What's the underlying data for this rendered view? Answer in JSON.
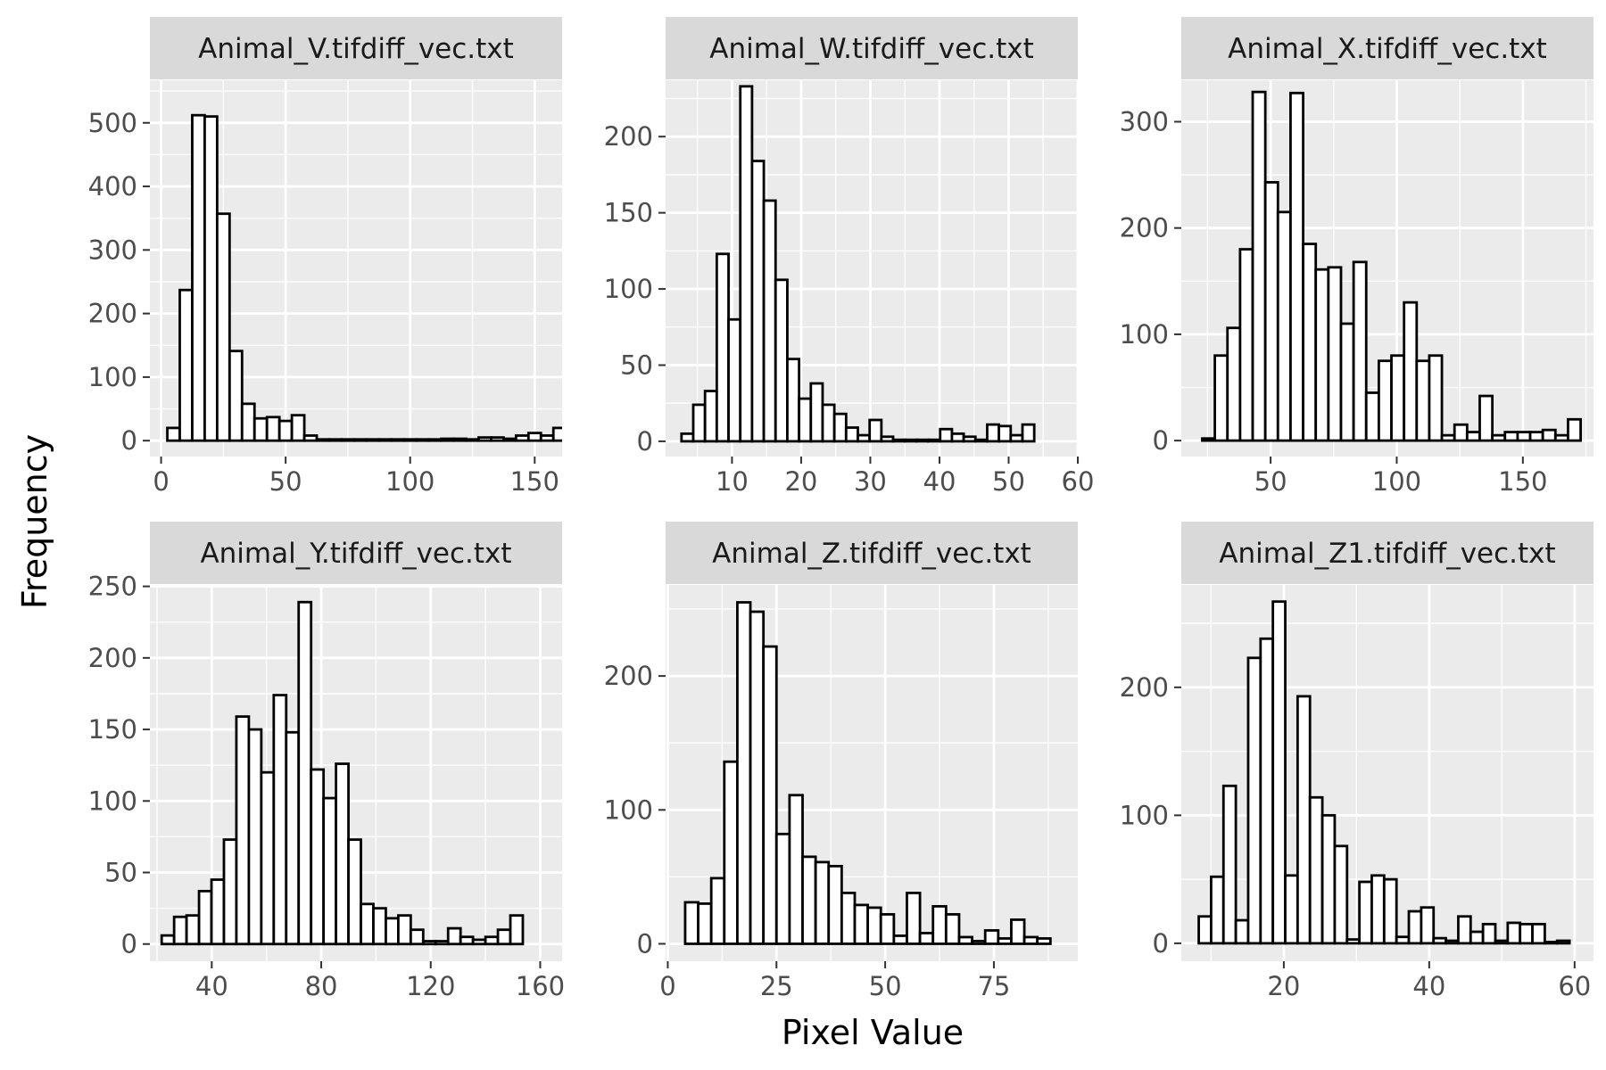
{
  "figure": {
    "xlabel": "Pixel Value",
    "ylabel": "Frequency",
    "colors": {
      "panel_background": "#ebebeb",
      "strip_background": "#d9d9d9",
      "grid": "#ffffff",
      "bar_fill": "#ffffff",
      "bar_stroke": "#000000",
      "tick": "#333333"
    }
  },
  "chart_data": [
    {
      "type": "bar",
      "title": "Animal_V.tifdiff_vec.txt",
      "xlabel": "Pixel Value",
      "ylabel": "Frequency",
      "xlim": [
        -4.5,
        161
      ],
      "ylim": [
        -25,
        567
      ],
      "xticks": [
        0,
        50,
        100,
        150
      ],
      "yticks": [
        0,
        100,
        200,
        300,
        400,
        500
      ],
      "grid": true,
      "bin_start": 2.5,
      "bin_width": 5,
      "values": [
        20,
        237,
        512,
        510,
        357,
        141,
        58,
        35,
        37,
        31,
        40,
        8,
        2,
        2,
        2,
        2,
        2,
        2,
        2,
        2,
        2,
        2,
        3,
        3,
        2,
        5,
        5,
        3,
        8,
        12,
        8,
        20
      ]
    },
    {
      "type": "bar",
      "title": "Animal_W.tifdiff_vec.txt",
      "xlabel": "Pixel Value",
      "ylabel": "Frequency",
      "xlim": [
        0.4,
        60
      ],
      "ylim": [
        -10,
        237
      ],
      "xticks": [
        10,
        20,
        30,
        40,
        50,
        60
      ],
      "yticks": [
        0,
        50,
        100,
        150,
        200
      ],
      "grid": true,
      "bin_start": 2.7,
      "bin_width": 1.7,
      "values": [
        5,
        24,
        33,
        123,
        80,
        233,
        184,
        158,
        106,
        54,
        28,
        38,
        24,
        18,
        9,
        4,
        14,
        3,
        1,
        1,
        1,
        1,
        8,
        5,
        3,
        1,
        11,
        10,
        4,
        11
      ]
    },
    {
      "type": "bar",
      "title": "Animal_X.tifdiff_vec.txt",
      "xlabel": "Pixel Value",
      "ylabel": "Frequency",
      "xlim": [
        14.6,
        178
      ],
      "ylim": [
        -15,
        339
      ],
      "xticks": [
        50,
        100,
        150
      ],
      "yticks": [
        0,
        100,
        200,
        300
      ],
      "grid": true,
      "bin_start": 22.9,
      "bin_width": 5,
      "values": [
        2,
        80,
        106,
        180,
        328,
        243,
        215,
        327,
        185,
        161,
        163,
        110,
        168,
        45,
        75,
        80,
        130,
        75,
        80,
        5,
        15,
        8,
        42,
        5,
        8,
        8,
        8,
        10,
        5,
        20
      ]
    },
    {
      "type": "bar",
      "title": "Animal_Y.tifdiff_vec.txt",
      "xlabel": "Pixel Value",
      "ylabel": "Frequency",
      "xlim": [
        17.4,
        168
      ],
      "ylim": [
        -12,
        251
      ],
      "xticks": [
        40,
        80,
        120,
        160
      ],
      "yticks": [
        0,
        50,
        100,
        150,
        200,
        250
      ],
      "grid": true,
      "bin_start": 21.7,
      "bin_width": 4.55,
      "values": [
        6,
        19,
        20,
        37,
        45,
        73,
        159,
        150,
        120,
        174,
        148,
        239,
        122,
        102,
        126,
        73,
        28,
        25,
        18,
        20,
        10,
        2,
        2,
        11,
        5,
        3,
        5,
        10,
        20
      ]
    },
    {
      "type": "bar",
      "title": "Animal_Z.tifdiff_vec.txt",
      "xlabel": "Pixel Value",
      "ylabel": "Frequency",
      "xlim": [
        -0.5,
        94.3
      ],
      "ylim": [
        -13,
        268
      ],
      "xticks": [
        0,
        25,
        50,
        75
      ],
      "yticks": [
        0,
        100,
        200
      ],
      "grid": true,
      "bin_start": 4,
      "bin_width": 3,
      "values": [
        31,
        30,
        49,
        136,
        255,
        248,
        222,
        82,
        111,
        65,
        61,
        58,
        38,
        29,
        27,
        22,
        6,
        38,
        8,
        28,
        22,
        5,
        2,
        10,
        4,
        18,
        5,
        4
      ]
    },
    {
      "type": "bar",
      "title": "Animal_Z1.tifdiff_vec.txt",
      "xlabel": "Pixel Value",
      "ylabel": "Frequency",
      "xlim": [
        5.9,
        62.6
      ],
      "ylim": [
        -14,
        280
      ],
      "xticks": [
        20,
        40,
        60
      ],
      "yticks": [
        0,
        100,
        200
      ],
      "grid": true,
      "bin_start": 8.3,
      "bin_width": 1.7,
      "values": [
        21,
        52,
        123,
        18,
        223,
        238,
        267,
        53,
        193,
        114,
        100,
        76,
        3,
        48,
        53,
        50,
        5,
        25,
        28,
        4,
        2,
        21,
        9,
        15,
        2,
        16,
        15,
        15,
        1,
        2
      ]
    }
  ]
}
